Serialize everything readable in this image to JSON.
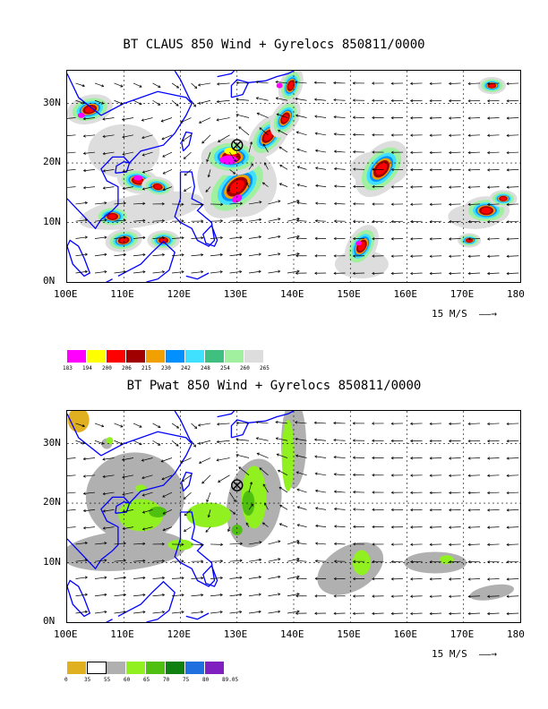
{
  "top": {
    "title": "BT CLAUS 850 Wind + Gyrelocs 850811/0000",
    "lat_labels": [
      "30N",
      "20N",
      "10N",
      "0N"
    ],
    "lon_labels": [
      "100E",
      "110E",
      "120E",
      "130E",
      "140E",
      "150E",
      "160E",
      "170E",
      "180"
    ],
    "ref_vector": "15 M/S",
    "colorbar": {
      "colors": [
        "#ff00ff",
        "#ffff00",
        "#ff0000",
        "#a00000",
        "#f0a000",
        "#0090ff",
        "#40e0ff",
        "#40c080",
        "#a0f0a0",
        "#dddddd"
      ],
      "ticks": [
        "183",
        "194",
        "200",
        "206",
        "215",
        "230",
        "242",
        "248",
        "254",
        "260",
        "265"
      ]
    }
  },
  "bottom": {
    "title": "BT Pwat 850 Wind + Gyrelocs 850811/0000",
    "lat_labels": [
      "30N",
      "20N",
      "10N",
      "0N"
    ],
    "lon_labels": [
      "100E",
      "110E",
      "120E",
      "130E",
      "140E",
      "150E",
      "160E",
      "170E",
      "180"
    ],
    "ref_vector": "15 M/S",
    "colorbar": {
      "colors": [
        "#e0b020",
        "#ffffff",
        "#b0b0b0",
        "#90f020",
        "#50c010",
        "#108010",
        "#2070e0",
        "#8020c0"
      ],
      "ticks": [
        "0",
        "35",
        "55",
        "60",
        "65",
        "70",
        "75",
        "80",
        "89.05"
      ]
    }
  },
  "gyre_center": {
    "lon": 130,
    "lat": 23
  },
  "colors": {
    "coastline": "#0000ff",
    "grid": "#000000"
  }
}
